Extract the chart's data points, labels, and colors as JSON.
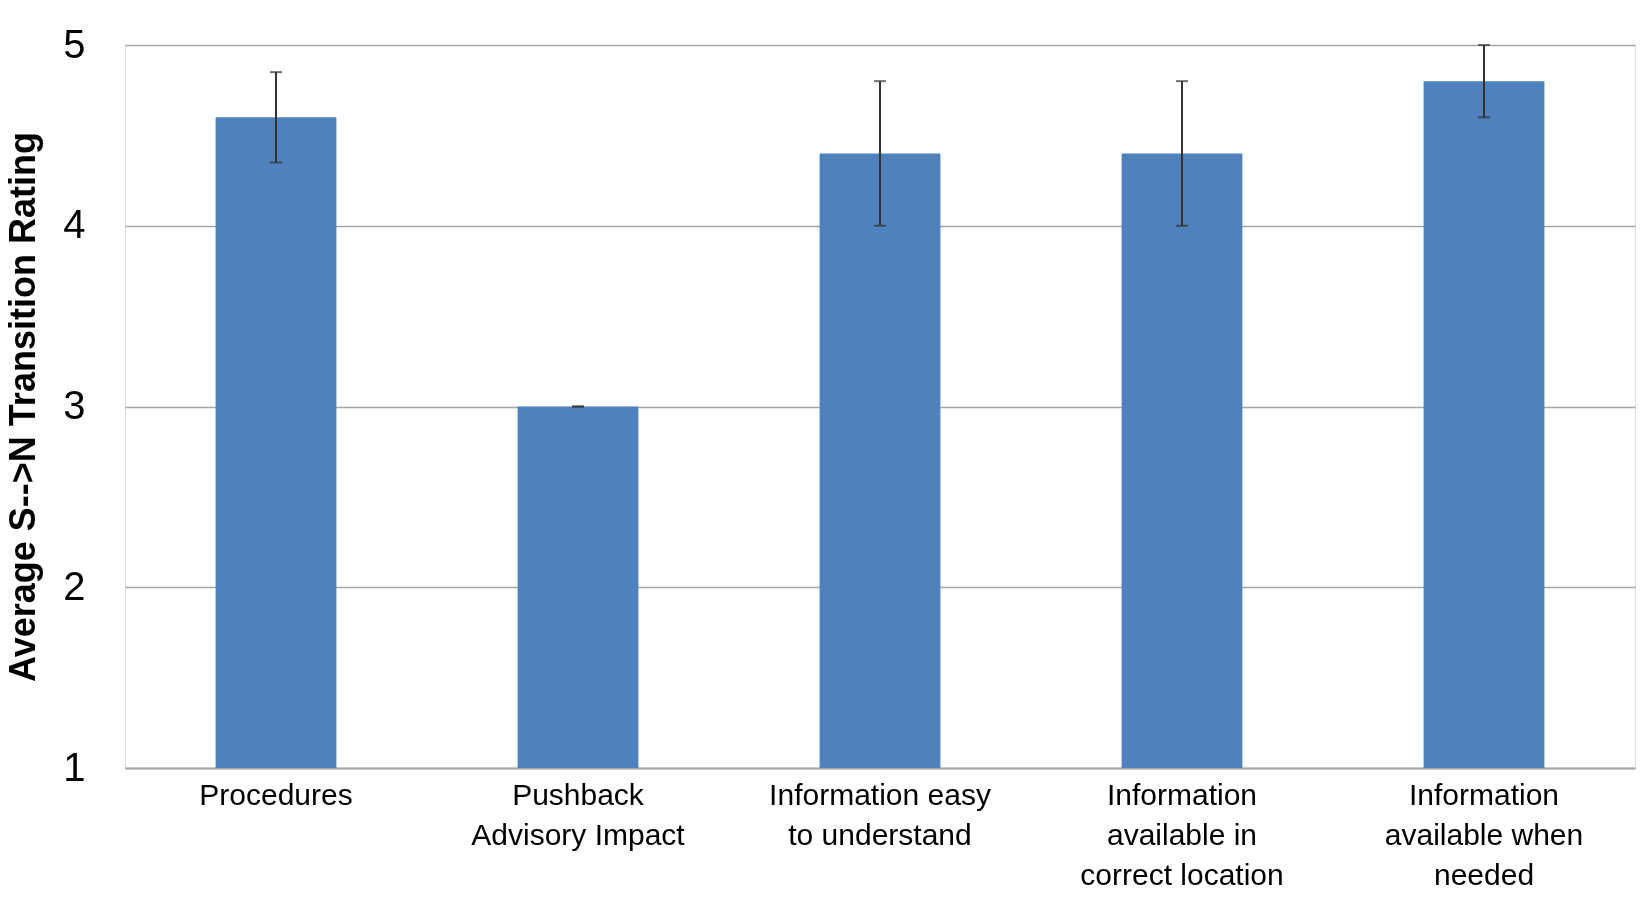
{
  "chart_data": {
    "type": "bar",
    "ylabel": "Average S-->N Transition Rating",
    "categories": [
      "Procedures",
      "Pushback Advisory Impact",
      "Information easy to understand",
      "Information available in correct location",
      "Information available when needed"
    ],
    "values": [
      4.6,
      3.0,
      4.4,
      4.4,
      4.8
    ],
    "errors": [
      [
        4.35,
        4.85
      ],
      0,
      [
        4.0,
        4.8
      ],
      [
        4.0,
        4.8
      ],
      [
        4.6,
        5.0
      ]
    ],
    "color": "#4f81bd",
    "ylim": [
      1,
      5
    ],
    "yticks": [
      1,
      2,
      3,
      4,
      5
    ],
    "grid": "y"
  }
}
